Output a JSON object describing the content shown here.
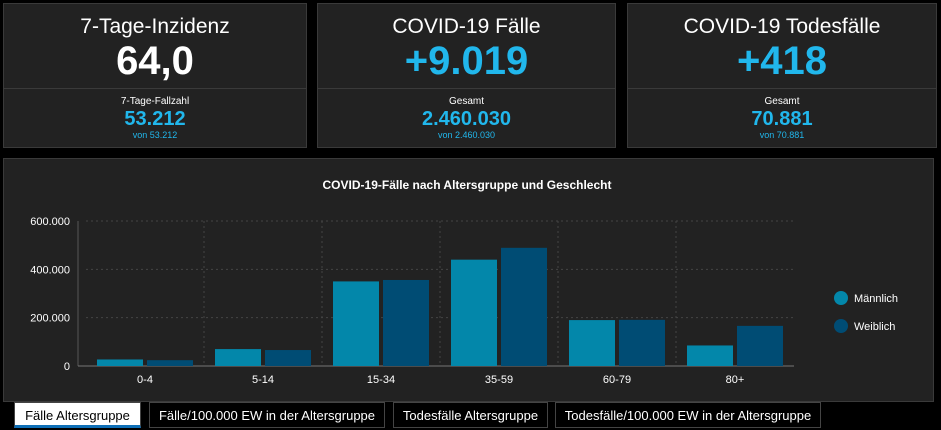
{
  "colors": {
    "accent": "#21b7ec",
    "male": "#0387aa",
    "female": "#004c74",
    "panel": "#222222"
  },
  "cards": [
    {
      "title": "7-Tage-Inzidenz",
      "big": "64,0",
      "big_color": "#ffffff",
      "sublabel": "7-Tage-Fallzahl",
      "subvalue": "53.212",
      "subsmall": "von 53.212"
    },
    {
      "title": "COVID-19 Fälle",
      "big": "+9.019",
      "big_color": "#21b7ec",
      "sublabel": "Gesamt",
      "subvalue": "2.460.030",
      "subsmall": "von 2.460.030"
    },
    {
      "title": "COVID-19 Todesfälle",
      "big": "+418",
      "big_color": "#21b7ec",
      "sublabel": "Gesamt",
      "subvalue": "70.881",
      "subsmall": "von 70.881"
    }
  ],
  "chart_data": {
    "type": "bar",
    "title": "COVID-19-Fälle nach Altersgruppe und Geschlecht",
    "categories": [
      "0-4",
      "5-14",
      "15-34",
      "35-59",
      "60-79",
      "80+"
    ],
    "series": [
      {
        "name": "Männlich",
        "values": [
          27000,
          70000,
          350000,
          440000,
          190000,
          85000
        ]
      },
      {
        "name": "Weiblich",
        "values": [
          24000,
          66000,
          356000,
          489000,
          191000,
          166000
        ]
      }
    ],
    "ylim": [
      0,
      600000
    ],
    "yticks": [
      0,
      200000,
      400000,
      600000
    ],
    "ytick_labels": [
      "0",
      "200.000",
      "400.000",
      "600.000"
    ],
    "grid": true,
    "legend_position": "right"
  },
  "tabs": [
    {
      "label": "Fälle Altersgruppe",
      "active": true
    },
    {
      "label": "Fälle/100.000 EW in der Altersgruppe",
      "active": false
    },
    {
      "label": "Todesfälle Altersgruppe",
      "active": false
    },
    {
      "label": "Todesfälle/100.000 EW in der Altersgruppe",
      "active": false
    }
  ]
}
